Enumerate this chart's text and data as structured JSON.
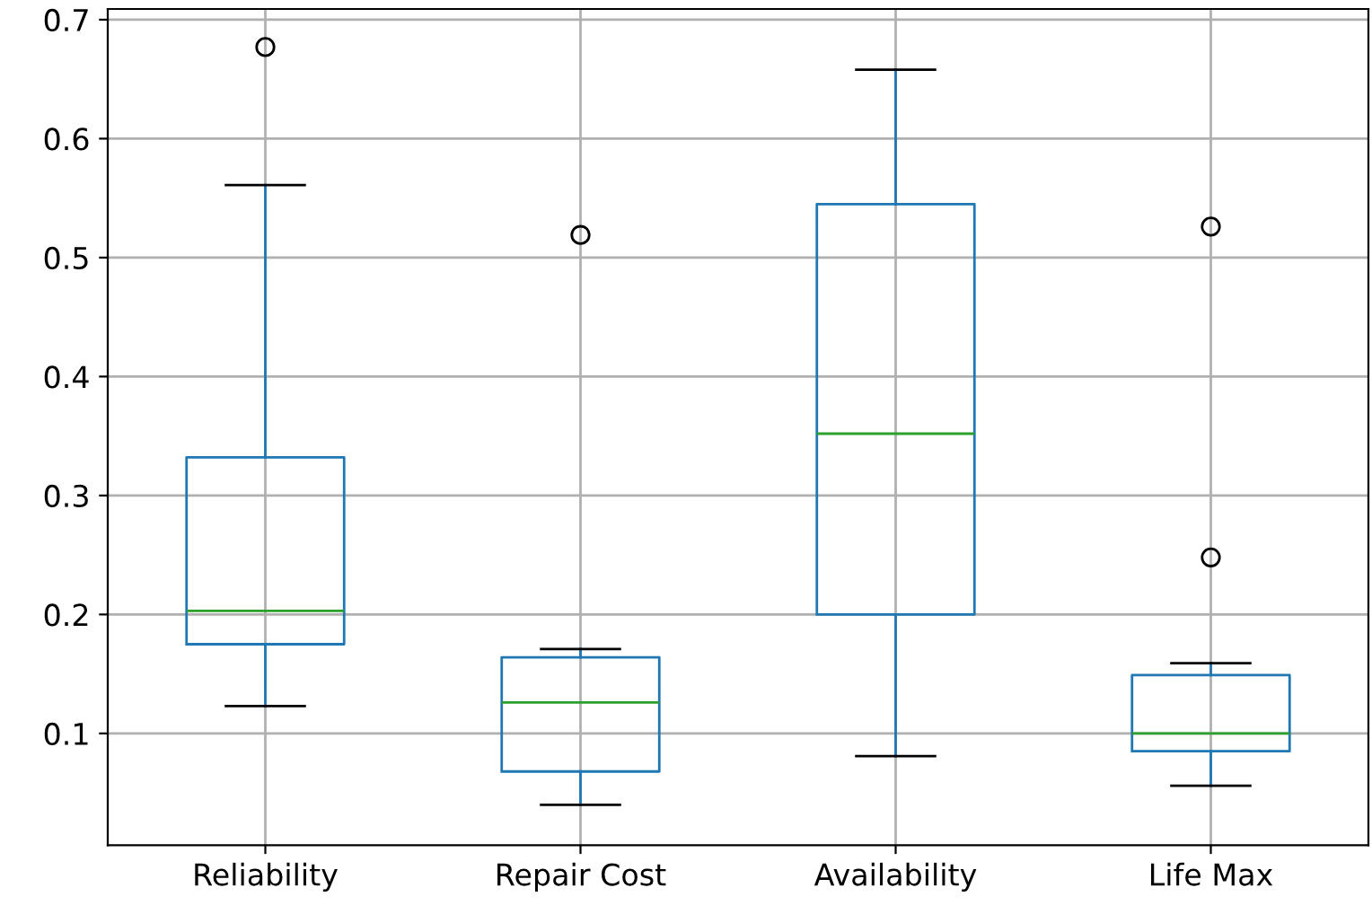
{
  "chart_data": {
    "type": "box",
    "categories": [
      "Reliability",
      "Repair Cost",
      "Availability",
      "Life Max"
    ],
    "boxes": [
      {
        "low": 0.123,
        "q1": 0.175,
        "median": 0.203,
        "q3": 0.332,
        "high": 0.561,
        "outliers": [
          0.677
        ]
      },
      {
        "low": 0.04,
        "q1": 0.068,
        "median": 0.126,
        "q3": 0.164,
        "high": 0.171,
        "outliers": [
          0.519
        ]
      },
      {
        "low": 0.081,
        "q1": 0.2,
        "median": 0.352,
        "q3": 0.545,
        "high": 0.658
      },
      {
        "low": 0.056,
        "q1": 0.085,
        "median": 0.1,
        "q3": 0.149,
        "high": 0.159,
        "outliers": [
          0.526,
          0.248
        ]
      }
    ],
    "color": "#1f77b4",
    "ylim": [
      0.006,
      0.709
    ],
    "yticks": [
      0.1,
      0.2,
      0.3,
      0.4,
      0.5,
      0.6,
      0.7
    ],
    "grid": true
  }
}
